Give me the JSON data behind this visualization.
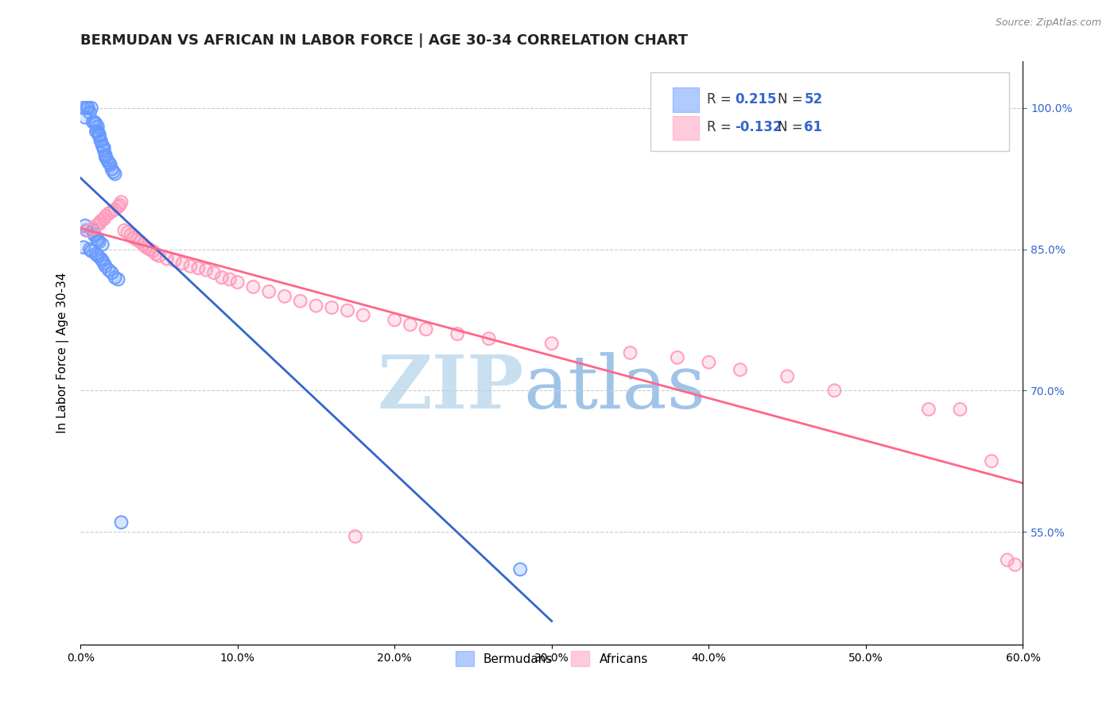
{
  "title": "BERMUDAN VS AFRICAN IN LABOR FORCE | AGE 30-34 CORRELATION CHART",
  "source": "Source: ZipAtlas.com",
  "ylabel": "In Labor Force | Age 30-34",
  "xlim": [
    0.0,
    0.6
  ],
  "ylim": [
    0.43,
    1.05
  ],
  "right_yticks": [
    0.55,
    0.7,
    0.85,
    1.0
  ],
  "right_yticklabels": [
    "55.0%",
    "70.0%",
    "85.0%",
    "100.0%"
  ],
  "xticks": [
    0.0,
    0.1,
    0.2,
    0.3,
    0.4,
    0.5,
    0.6
  ],
  "xticklabels": [
    "0.0%",
    "10.0%",
    "20.0%",
    "30.0%",
    "40.0%",
    "50.0%",
    "60.0%"
  ],
  "bermudan_color": "#6699ff",
  "african_color": "#ff99bb",
  "bermudan_line_color": "#3366cc",
  "african_line_color": "#ff6688",
  "legend_R_bermudan": "0.215",
  "legend_N_bermudan": "52",
  "legend_R_african": "-0.132",
  "legend_N_african": "61",
  "watermark_zip": "ZIP",
  "watermark_atlas": "atlas",
  "background_color": "#ffffff",
  "grid_color": "#cccccc",
  "title_fontsize": 13,
  "axis_label_fontsize": 11,
  "tick_fontsize": 10,
  "bermudan_x": [
    0.002,
    0.004,
    0.005,
    0.007,
    0.003,
    0.006,
    0.008,
    0.009,
    0.01,
    0.011,
    0.01,
    0.011,
    0.012,
    0.012,
    0.013,
    0.013,
    0.014,
    0.015,
    0.015,
    0.016,
    0.016,
    0.017,
    0.018,
    0.019,
    0.02,
    0.021,
    0.022,
    0.008,
    0.009,
    0.011,
    0.003,
    0.004,
    0.008,
    0.009,
    0.011,
    0.012,
    0.014,
    0.002,
    0.006,
    0.007,
    0.01,
    0.011,
    0.013,
    0.014,
    0.015,
    0.016,
    0.018,
    0.02,
    0.022,
    0.024,
    0.026,
    0.28
  ],
  "bermudan_y": [
    1.0,
    1.0,
    1.0,
    1.0,
    0.99,
    0.995,
    0.985,
    0.985,
    0.983,
    0.98,
    0.975,
    0.975,
    0.972,
    0.97,
    0.965,
    0.965,
    0.96,
    0.958,
    0.955,
    0.95,
    0.948,
    0.945,
    0.942,
    0.94,
    0.935,
    0.932,
    0.93,
    0.87,
    0.865,
    0.86,
    0.875,
    0.87,
    0.87,
    0.865,
    0.86,
    0.858,
    0.855,
    0.852,
    0.85,
    0.848,
    0.845,
    0.843,
    0.84,
    0.838,
    0.835,
    0.832,
    0.828,
    0.825,
    0.82,
    0.818,
    0.56,
    0.51
  ],
  "african_x": [
    0.005,
    0.008,
    0.01,
    0.012,
    0.013,
    0.015,
    0.016,
    0.018,
    0.02,
    0.022,
    0.024,
    0.025,
    0.026,
    0.028,
    0.03,
    0.032,
    0.034,
    0.036,
    0.038,
    0.04,
    0.042,
    0.044,
    0.046,
    0.048,
    0.05,
    0.055,
    0.06,
    0.065,
    0.07,
    0.075,
    0.08,
    0.085,
    0.09,
    0.095,
    0.1,
    0.11,
    0.12,
    0.13,
    0.14,
    0.15,
    0.16,
    0.17,
    0.18,
    0.2,
    0.21,
    0.22,
    0.24,
    0.26,
    0.3,
    0.35,
    0.38,
    0.4,
    0.42,
    0.45,
    0.48,
    0.175,
    0.54,
    0.56,
    0.58,
    0.59,
    0.595
  ],
  "african_y": [
    0.87,
    0.872,
    0.875,
    0.877,
    0.88,
    0.882,
    0.885,
    0.888,
    0.89,
    0.892,
    0.895,
    0.897,
    0.9,
    0.87,
    0.868,
    0.865,
    0.862,
    0.86,
    0.858,
    0.855,
    0.852,
    0.85,
    0.848,
    0.845,
    0.843,
    0.84,
    0.838,
    0.835,
    0.832,
    0.83,
    0.828,
    0.825,
    0.82,
    0.818,
    0.815,
    0.81,
    0.805,
    0.8,
    0.795,
    0.79,
    0.788,
    0.785,
    0.78,
    0.775,
    0.77,
    0.765,
    0.76,
    0.755,
    0.75,
    0.74,
    0.735,
    0.73,
    0.722,
    0.715,
    0.7,
    0.545,
    0.68,
    0.68,
    0.625,
    0.52,
    0.515
  ]
}
